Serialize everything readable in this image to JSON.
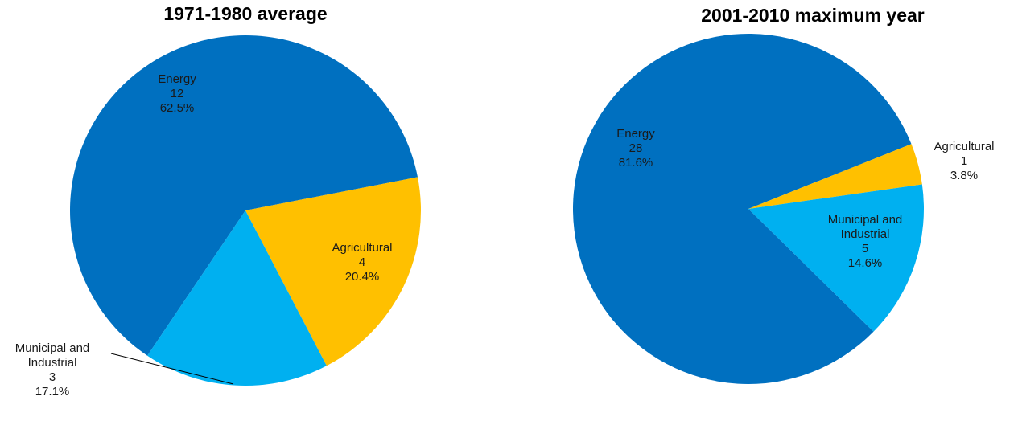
{
  "chart_data": [
    {
      "type": "pie",
      "title": "1971-1980 average",
      "categories": [
        "Energy",
        "Agricultural",
        "Municipal and Industrial"
      ],
      "amounts": [
        12,
        4,
        3
      ],
      "values": [
        62.5,
        20.4,
        17.1
      ],
      "value_labels": [
        "62.5%",
        "20.4%",
        "17.1%"
      ],
      "colors": [
        "#0070c0",
        "#ffc000",
        "#00b0f0"
      ]
    },
    {
      "type": "pie",
      "title": "2001-2010 maximum year",
      "categories": [
        "Energy",
        "Agricultural",
        "Municipal and Industrial"
      ],
      "amounts": [
        28,
        1,
        5
      ],
      "values": [
        81.6,
        3.8,
        14.6
      ],
      "value_labels": [
        "81.6%",
        "3.8%",
        "14.6%"
      ],
      "colors": [
        "#0070c0",
        "#ffc000",
        "#00b0f0"
      ]
    }
  ]
}
